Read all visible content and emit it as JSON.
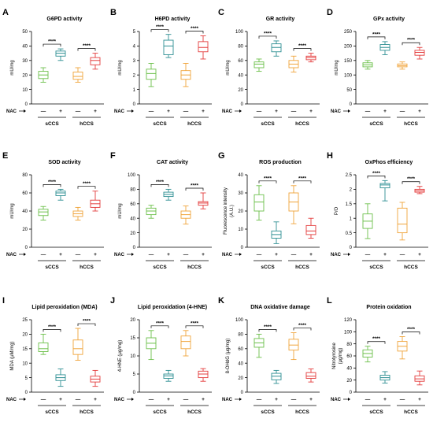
{
  "figure": {
    "nac_label": "NAC",
    "group_labels": [
      "sCCS",
      "hCCS"
    ],
    "treat_labels": [
      "—",
      "+"
    ],
    "sig_label": "****"
  },
  "colors": {
    "sCCS_minus": "#6cc04a",
    "sCCS_plus": "#2e8f93",
    "hCCS_minus": "#f0a43a",
    "hCCS_plus": "#e43c3c"
  },
  "chart_data": [
    {
      "type": "box",
      "panel": "A",
      "title": "G6PD activity",
      "ylabel": "mU/mg",
      "ylim": [
        0,
        50
      ],
      "ticks": [
        0,
        10,
        20,
        30,
        40,
        50
      ],
      "boxes": [
        {
          "min": 15,
          "q1": 17.5,
          "median": 20,
          "q3": 22.5,
          "max": 25
        },
        {
          "min": 30,
          "q1": 33,
          "median": 35,
          "q3": 36.5,
          "max": 38
        },
        {
          "min": 15,
          "q1": 17,
          "median": 19,
          "q3": 22,
          "max": 25
        },
        {
          "min": 24,
          "q1": 27,
          "median": 30,
          "q3": 32,
          "max": 35
        }
      ]
    },
    {
      "type": "box",
      "panel": "B",
      "title": "H6PD activity",
      "ylabel": "mU/mg",
      "ylim": [
        0,
        5
      ],
      "ticks": [
        0,
        1,
        2,
        3,
        4,
        5
      ],
      "boxes": [
        {
          "min": 1.2,
          "q1": 1.7,
          "median": 2.1,
          "q3": 2.4,
          "max": 2.8
        },
        {
          "min": 3.2,
          "q1": 3.4,
          "median": 4,
          "q3": 4.4,
          "max": 4.8
        },
        {
          "min": 1.2,
          "q1": 1.7,
          "median": 2,
          "q3": 2.3,
          "max": 2.8
        },
        {
          "min": 3.1,
          "q1": 3.6,
          "median": 3.9,
          "q3": 4.3,
          "max": 4.7
        }
      ]
    },
    {
      "type": "box",
      "panel": "C",
      "title": "GR activity",
      "ylabel": "mU/mg",
      "ylim": [
        0,
        100
      ],
      "ticks": [
        0,
        20,
        40,
        60,
        80,
        100
      ],
      "boxes": [
        {
          "min": 45,
          "q1": 50,
          "median": 55,
          "q3": 58,
          "max": 62
        },
        {
          "min": 66,
          "q1": 72,
          "median": 78,
          "q3": 83,
          "max": 87
        },
        {
          "min": 44,
          "q1": 50,
          "median": 55,
          "q3": 60,
          "max": 66
        },
        {
          "min": 58,
          "q1": 61,
          "median": 64,
          "q3": 66,
          "max": 70
        }
      ]
    },
    {
      "type": "box",
      "panel": "D",
      "title": "GPx activity",
      "ylabel": "mU/mg",
      "ylim": [
        0,
        250
      ],
      "ticks": [
        0,
        50,
        100,
        150,
        200,
        250
      ],
      "boxes": [
        {
          "min": 120,
          "q1": 128,
          "median": 135,
          "q3": 142,
          "max": 150
        },
        {
          "min": 170,
          "q1": 185,
          "median": 195,
          "q3": 205,
          "max": 215
        },
        {
          "min": 120,
          "q1": 128,
          "median": 132,
          "q3": 138,
          "max": 145
        },
        {
          "min": 155,
          "q1": 168,
          "median": 178,
          "q3": 185,
          "max": 195
        }
      ]
    },
    {
      "type": "box",
      "panel": "E",
      "title": "SOD activity",
      "ylabel": "mU/mg",
      "ylim": [
        0,
        80
      ],
      "ticks": [
        0,
        20,
        40,
        60,
        80
      ],
      "boxes": [
        {
          "min": 30,
          "q1": 35,
          "median": 39,
          "q3": 42,
          "max": 45
        },
        {
          "min": 52,
          "q1": 57,
          "median": 60,
          "q3": 62,
          "max": 64
        },
        {
          "min": 30,
          "q1": 34,
          "median": 37,
          "q3": 40,
          "max": 44
        },
        {
          "min": 40,
          "q1": 44,
          "median": 48,
          "q3": 52,
          "max": 62
        }
      ]
    },
    {
      "type": "box",
      "panel": "F",
      "title": "CAT activity",
      "ylabel": "mU/mg",
      "ylim": [
        0,
        100
      ],
      "ticks": [
        0,
        20,
        40,
        60,
        80,
        100
      ],
      "boxes": [
        {
          "min": 40,
          "q1": 45,
          "median": 50,
          "q3": 54,
          "max": 58
        },
        {
          "min": 65,
          "q1": 70,
          "median": 73,
          "q3": 76,
          "max": 80
        },
        {
          "min": 32,
          "q1": 40,
          "median": 45,
          "q3": 50,
          "max": 57
        },
        {
          "min": 53,
          "q1": 58,
          "median": 61,
          "q3": 63,
          "max": 75
        }
      ]
    },
    {
      "type": "box",
      "panel": "G",
      "title": "ROS production",
      "ylabel": "Fluorescence intensity (A.U.)",
      "ylim": [
        0,
        40
      ],
      "ticks": [
        0,
        10,
        20,
        30,
        40
      ],
      "boxes": [
        {
          "min": 15,
          "q1": 20,
          "median": 25,
          "q3": 29,
          "max": 34
        },
        {
          "min": 2,
          "q1": 5,
          "median": 7,
          "q3": 9,
          "max": 14
        },
        {
          "min": 13,
          "q1": 20,
          "median": 25,
          "q3": 30,
          "max": 34
        },
        {
          "min": 5,
          "q1": 7,
          "median": 9,
          "q3": 12,
          "max": 16
        }
      ]
    },
    {
      "type": "box",
      "panel": "H",
      "title": "OxPhos efficiency",
      "ylabel": "P/O",
      "ylim": [
        0,
        2.5
      ],
      "ticks": [
        0,
        0.5,
        1.0,
        1.5,
        2.0,
        2.5
      ],
      "boxes": [
        {
          "min": 0.3,
          "q1": 0.65,
          "median": 0.9,
          "q3": 1.15,
          "max": 1.5
        },
        {
          "min": 1.6,
          "q1": 2.05,
          "median": 2.15,
          "q3": 2.2,
          "max": 2.3
        },
        {
          "min": 0.25,
          "q1": 0.5,
          "median": 0.8,
          "q3": 1.35,
          "max": 1.55
        },
        {
          "min": 1.85,
          "q1": 1.9,
          "median": 1.95,
          "q3": 2.0,
          "max": 2.1
        }
      ]
    },
    {
      "type": "box",
      "panel": "I",
      "title": "Lipid peroxidation (MDA)",
      "ylabel": "MDA (μM/mg)",
      "ylim": [
        0,
        25
      ],
      "ticks": [
        0,
        5,
        10,
        15,
        20,
        25
      ],
      "boxes": [
        {
          "min": 13,
          "q1": 14,
          "median": 15,
          "q3": 17,
          "max": 20
        },
        {
          "min": 2,
          "q1": 4,
          "median": 5,
          "q3": 6,
          "max": 8
        },
        {
          "min": 11,
          "q1": 13,
          "median": 15,
          "q3": 18,
          "max": 22
        },
        {
          "min": 2,
          "q1": 3.5,
          "median": 4.5,
          "q3": 5.5,
          "max": 7.5
        }
      ]
    },
    {
      "type": "box",
      "panel": "J",
      "title": "Lipid peroxidation (4-HNE)",
      "ylabel": "4-HNE (μg/mg)",
      "ylim": [
        0,
        20
      ],
      "ticks": [
        0,
        5,
        10,
        15,
        20
      ],
      "boxes": [
        {
          "min": 9,
          "q1": 12,
          "median": 13.5,
          "q3": 15,
          "max": 17
        },
        {
          "min": 3,
          "q1": 3.8,
          "median": 4.5,
          "q3": 5,
          "max": 6
        },
        {
          "min": 10,
          "q1": 12,
          "median": 14,
          "q3": 15.5,
          "max": 17
        },
        {
          "min": 3,
          "q1": 4,
          "median": 5,
          "q3": 5.8,
          "max": 6.5
        }
      ]
    },
    {
      "type": "box",
      "panel": "K",
      "title": "DNA oxidative damage",
      "ylabel": "8-OHdG (μg/mg)",
      "ylim": [
        0,
        100
      ],
      "ticks": [
        0,
        20,
        40,
        60,
        80,
        100
      ],
      "boxes": [
        {
          "min": 48,
          "q1": 62,
          "median": 68,
          "q3": 74,
          "max": 80
        },
        {
          "min": 12,
          "q1": 17,
          "median": 22,
          "q3": 26,
          "max": 30
        },
        {
          "min": 45,
          "q1": 58,
          "median": 65,
          "q3": 73,
          "max": 82
        },
        {
          "min": 14,
          "q1": 19,
          "median": 22,
          "q3": 27,
          "max": 32
        }
      ]
    },
    {
      "type": "box",
      "panel": "L",
      "title": "Protein oxidation",
      "ylabel": "Nitrotyrosine (μg/mg)",
      "ylim": [
        0,
        120
      ],
      "ticks": [
        0,
        20,
        40,
        60,
        80,
        100,
        120
      ],
      "boxes": [
        {
          "min": 50,
          "q1": 58,
          "median": 64,
          "q3": 70,
          "max": 76
        },
        {
          "min": 15,
          "q1": 20,
          "median": 24,
          "q3": 28,
          "max": 34
        },
        {
          "min": 55,
          "q1": 68,
          "median": 76,
          "q3": 84,
          "max": 92
        },
        {
          "min": 12,
          "q1": 18,
          "median": 22,
          "q3": 27,
          "max": 35
        }
      ]
    }
  ]
}
